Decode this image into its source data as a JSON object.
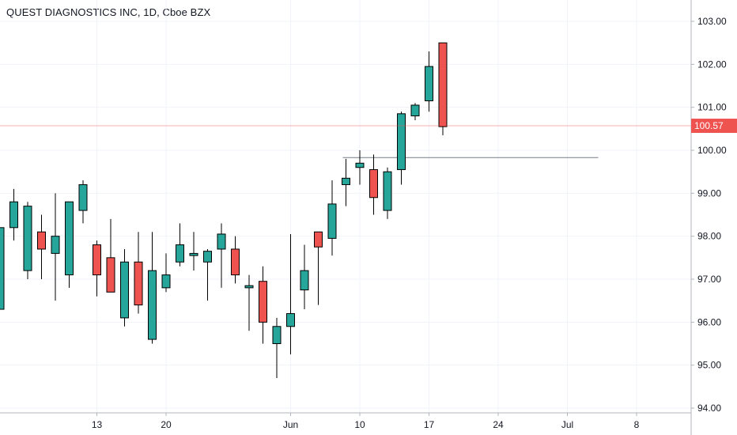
{
  "header": {
    "title": "QUEST DIAGNOSTICS INC, 1D, Cboe BZX"
  },
  "colors": {
    "up": "#26a69a",
    "down": "#ef5350",
    "wick": "#000000",
    "grid": "#f0f3fa",
    "last_price_line": "#ef5350",
    "level_line": "#787b86",
    "axis": "#b2b5be"
  },
  "chart_data": {
    "type": "candlestick",
    "title": "QUEST DIAGNOSTICS INC, 1D, Cboe BZX",
    "ylim": [
      93.9,
      103.3
    ],
    "y_ticks": [
      "94.00",
      "95.00",
      "96.00",
      "97.00",
      "98.00",
      "99.00",
      "100.00",
      "101.00",
      "102.00",
      "103.00"
    ],
    "x_ticks": [
      {
        "label": "13",
        "index": 7
      },
      {
        "label": "20",
        "index": 12
      },
      {
        "label": "Jun",
        "index": 21
      },
      {
        "label": "10",
        "index": 26
      },
      {
        "label": "17",
        "index": 31
      },
      {
        "label": "24",
        "index": 36
      },
      {
        "label": "Jul",
        "index": 41
      },
      {
        "label": "8",
        "index": 46
      }
    ],
    "last_price": 100.57,
    "last_price_label": "100.57",
    "horizontal_level": {
      "value": 99.83,
      "from_index": 25,
      "to_index": 43
    },
    "candles": [
      {
        "open": 96.3,
        "high": 98.2,
        "low": 96.3,
        "close": 98.2
      },
      {
        "open": 98.2,
        "high": 99.1,
        "low": 97.9,
        "close": 98.8
      },
      {
        "open": 97.2,
        "high": 98.8,
        "low": 97.0,
        "close": 98.7
      },
      {
        "open": 98.1,
        "high": 98.5,
        "low": 97.0,
        "close": 97.7
      },
      {
        "open": 97.6,
        "high": 99.0,
        "low": 96.5,
        "close": 98.0
      },
      {
        "open": 97.1,
        "high": 98.8,
        "low": 96.8,
        "close": 98.8
      },
      {
        "open": 98.6,
        "high": 99.3,
        "low": 98.3,
        "close": 99.2
      },
      {
        "open": 97.8,
        "high": 97.9,
        "low": 96.6,
        "close": 97.1
      },
      {
        "open": 97.5,
        "high": 98.4,
        "low": 96.7,
        "close": 96.7
      },
      {
        "open": 96.1,
        "high": 97.7,
        "low": 95.9,
        "close": 97.4
      },
      {
        "open": 97.4,
        "high": 98.1,
        "low": 96.2,
        "close": 96.4
      },
      {
        "open": 95.6,
        "high": 98.1,
        "low": 95.5,
        "close": 97.2
      },
      {
        "open": 96.8,
        "high": 97.6,
        "low": 96.7,
        "close": 97.1
      },
      {
        "open": 97.4,
        "high": 98.3,
        "low": 97.3,
        "close": 97.8
      },
      {
        "open": 97.55,
        "high": 98.1,
        "low": 97.2,
        "close": 97.6
      },
      {
        "open": 97.4,
        "high": 97.7,
        "low": 96.5,
        "close": 97.65
      },
      {
        "open": 97.7,
        "high": 98.3,
        "low": 96.8,
        "close": 98.05
      },
      {
        "open": 97.7,
        "high": 98.0,
        "low": 96.9,
        "close": 97.1
      },
      {
        "open": 96.8,
        "high": 97.1,
        "low": 95.8,
        "close": 96.85
      },
      {
        "open": 96.95,
        "high": 97.3,
        "low": 95.5,
        "close": 96.0
      },
      {
        "open": 95.5,
        "high": 96.1,
        "low": 94.7,
        "close": 95.9
      },
      {
        "open": 95.9,
        "high": 98.05,
        "low": 95.25,
        "close": 96.2
      },
      {
        "open": 96.75,
        "high": 97.8,
        "low": 96.3,
        "close": 97.2
      },
      {
        "open": 98.1,
        "high": 98.1,
        "low": 96.4,
        "close": 97.75
      },
      {
        "open": 97.95,
        "high": 99.3,
        "low": 97.55,
        "close": 98.75
      },
      {
        "open": 99.2,
        "high": 99.8,
        "low": 98.7,
        "close": 99.35
      },
      {
        "open": 99.6,
        "high": 100.0,
        "low": 99.2,
        "close": 99.7
      },
      {
        "open": 99.55,
        "high": 99.9,
        "low": 98.5,
        "close": 98.9
      },
      {
        "open": 98.6,
        "high": 99.6,
        "low": 98.4,
        "close": 99.5
      },
      {
        "open": 99.55,
        "high": 100.9,
        "low": 99.2,
        "close": 100.85
      },
      {
        "open": 100.8,
        "high": 101.1,
        "low": 100.7,
        "close": 101.05
      },
      {
        "open": 101.15,
        "high": 102.3,
        "low": 100.9,
        "close": 101.95
      },
      {
        "open": 102.5,
        "high": 102.5,
        "low": 100.35,
        "close": 100.55
      }
    ]
  }
}
